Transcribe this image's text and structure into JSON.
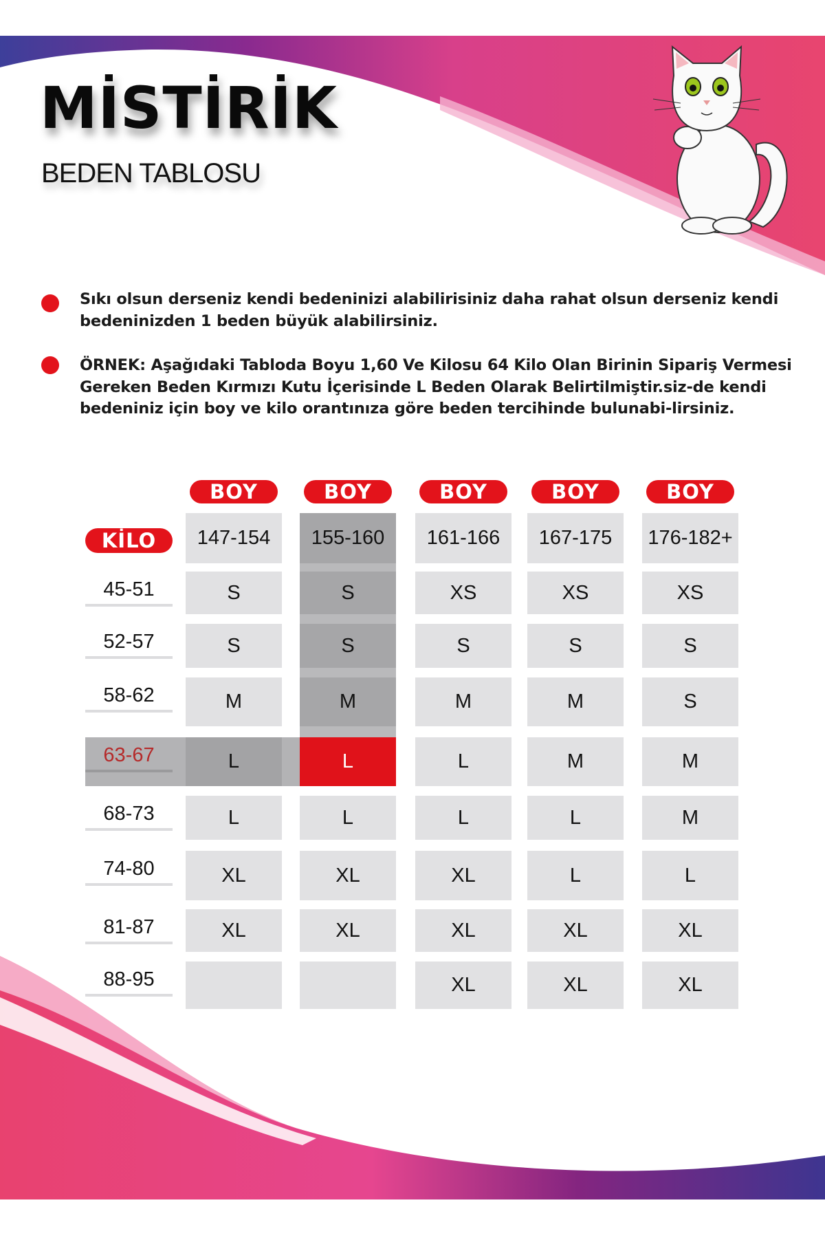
{
  "brand": "MİSTİRİK",
  "subtitle": "BEDEN TABLOSU",
  "colors": {
    "accent_red": "#e3131b",
    "cell_gray": "#e1e1e3",
    "highlight_gray": "#a6a6a8",
    "wave_pink": "#e8407a",
    "wave_purple": "#4a2f8c"
  },
  "icons": {
    "mascot": "white-cat-illustration",
    "bullet": "red-dot"
  },
  "notes": [
    "Sıkı olsun derseniz kendi bedeninizi alabilirisiniz daha rahat olsun derseniz kendi bedeninizden 1 beden büyük alabilirsiniz.",
    "ÖRNEK: Aşağıdaki Tabloda Boyu 1,60 Ve Kilosu 64 Kilo Olan Birinin Sipariş Vermesi Gereken Beden Kırmızı Kutu İçerisinde L Beden Olarak Belirtilmiştir.siz-de kendi bedeniniz için boy ve kilo orantınıza göre beden tercihinde bulunabi-lirsiniz."
  ],
  "table": {
    "boy_label": "BOY",
    "kilo_label": "KİLO",
    "heights": [
      "147-154",
      "155-160",
      "161-166",
      "167-175",
      "176-182+"
    ],
    "rows": [
      {
        "kilo": "45-51",
        "sizes": [
          "S",
          "S",
          "XS",
          "XS",
          "XS"
        ]
      },
      {
        "kilo": "52-57",
        "sizes": [
          "S",
          "S",
          "S",
          "S",
          "S"
        ]
      },
      {
        "kilo": "58-62",
        "sizes": [
          "M",
          "M",
          "M",
          "M",
          "S"
        ]
      },
      {
        "kilo": "63-67",
        "sizes": [
          "L",
          "L",
          "L",
          "M",
          "M"
        ]
      },
      {
        "kilo": "68-73",
        "sizes": [
          "L",
          "L",
          "L",
          "L",
          "M"
        ]
      },
      {
        "kilo": "74-80",
        "sizes": [
          "XL",
          "XL",
          "XL",
          "L",
          "L"
        ]
      },
      {
        "kilo": "81-87",
        "sizes": [
          "XL",
          "XL",
          "XL",
          "XL",
          "XL"
        ]
      },
      {
        "kilo": "88-95",
        "sizes": [
          "",
          "",
          "XL",
          "XL",
          "XL"
        ]
      }
    ],
    "highlight": {
      "height_column": "155-160",
      "kilo_row": "63-67",
      "size": "L"
    }
  }
}
